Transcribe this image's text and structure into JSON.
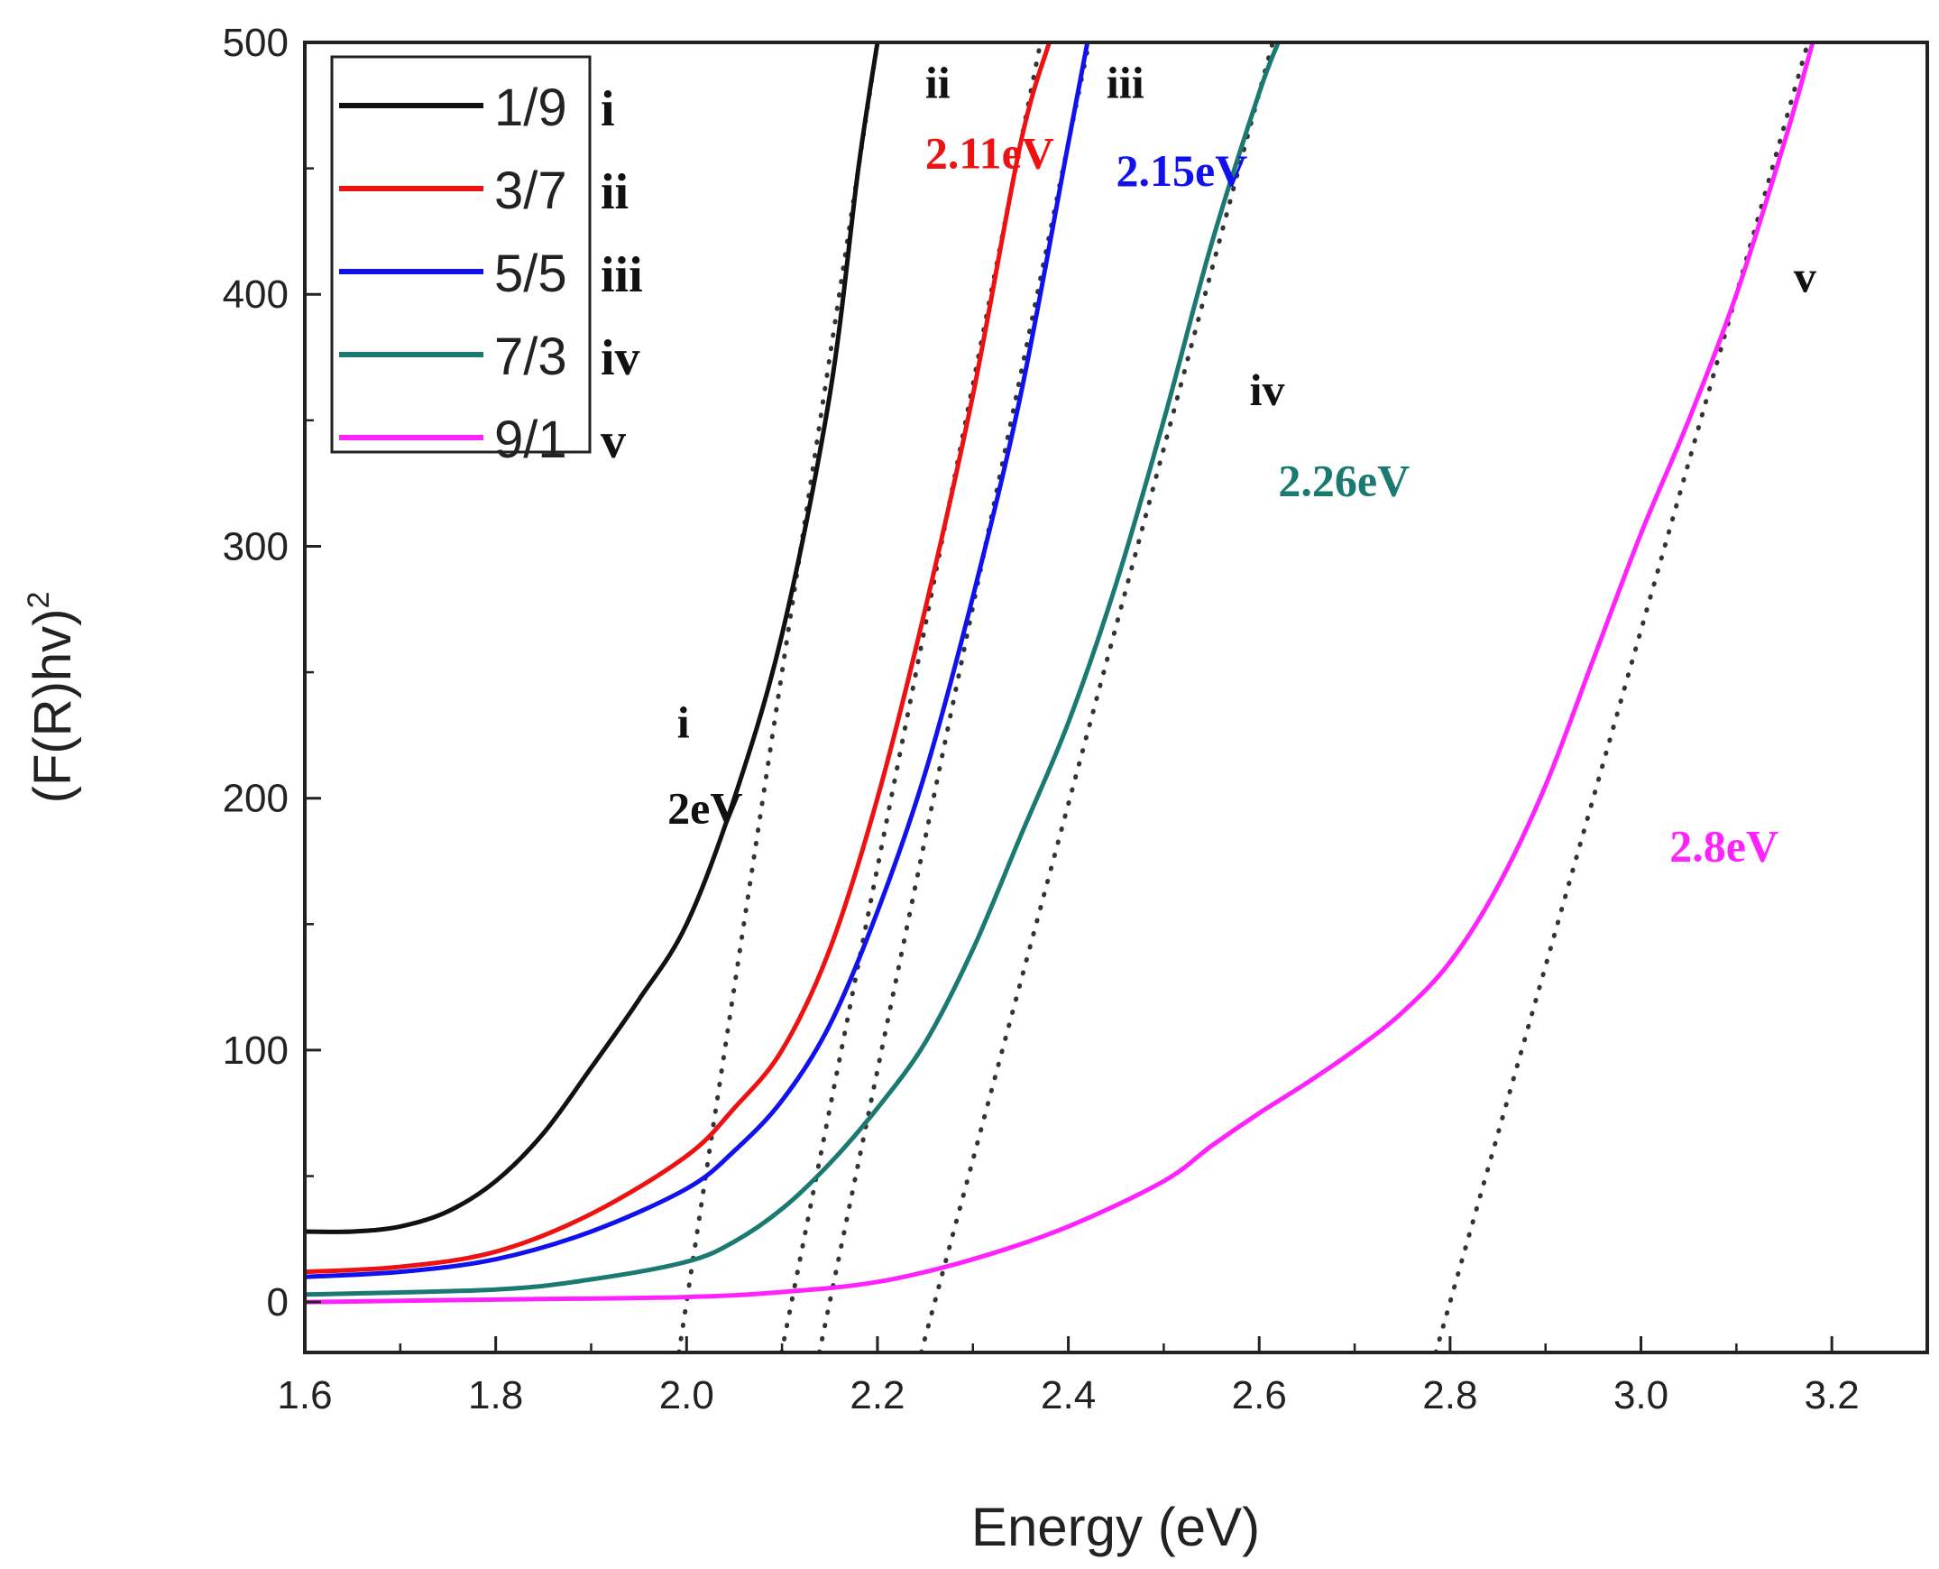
{
  "chart_data": {
    "type": "line",
    "title": "",
    "xlabel": "Energy (eV)",
    "ylabel_main": "(F(R)hv)",
    "ylabel_sup": "2",
    "xlim": [
      1.6,
      3.3
    ],
    "ylim": [
      -20,
      500
    ],
    "x_ticks": [
      1.6,
      1.8,
      2.0,
      2.2,
      2.4,
      2.6,
      2.8,
      3.0,
      3.2
    ],
    "x_tick_labels": [
      "1.6",
      "1.8",
      "2.0",
      "2.2",
      "2.4",
      "2.6",
      "2.8",
      "3.0",
      "3.2"
    ],
    "y_ticks": [
      0,
      100,
      200,
      300,
      400,
      500
    ],
    "y_tick_labels": [
      "0",
      "100",
      "200",
      "300",
      "400",
      "500"
    ],
    "legend_position": "top-left",
    "series": [
      {
        "name": "1/9",
        "tag": "i",
        "color": "#111111",
        "x": [
          1.6,
          1.65,
          1.7,
          1.75,
          1.8,
          1.85,
          1.9,
          1.95,
          2.0,
          2.05,
          2.1,
          2.15,
          2.18,
          2.2
        ],
        "y": [
          28,
          28,
          30,
          36,
          48,
          67,
          93,
          120,
          150,
          200,
          265,
          360,
          450,
          500
        ],
        "fit": {
          "x_intercept": 2.0,
          "through": [
            2.18,
            450
          ]
        }
      },
      {
        "name": "3/7",
        "tag": "ii",
        "color": "#ee1111",
        "x": [
          1.6,
          1.7,
          1.8,
          1.9,
          2.0,
          2.05,
          2.1,
          2.15,
          2.2,
          2.25,
          2.3,
          2.35,
          2.38
        ],
        "y": [
          12,
          14,
          20,
          35,
          58,
          77,
          100,
          140,
          200,
          275,
          360,
          460,
          500
        ],
        "fit": {
          "x_intercept": 2.11,
          "through": [
            2.35,
            460
          ]
        }
      },
      {
        "name": "5/5",
        "tag": "iii",
        "color": "#1111ee",
        "x": [
          1.6,
          1.7,
          1.8,
          1.9,
          2.0,
          2.05,
          2.1,
          2.15,
          2.2,
          2.25,
          2.3,
          2.35,
          2.4,
          2.42
        ],
        "y": [
          10,
          12,
          17,
          28,
          45,
          60,
          80,
          110,
          155,
          210,
          280,
          360,
          460,
          500
        ],
        "fit": {
          "x_intercept": 2.15,
          "through": [
            2.4,
            460
          ]
        }
      },
      {
        "name": "7/3",
        "tag": "iv",
        "color": "#1a7a72",
        "x": [
          1.6,
          1.8,
          1.9,
          2.0,
          2.05,
          2.1,
          2.15,
          2.2,
          2.25,
          2.3,
          2.35,
          2.4,
          2.45,
          2.5,
          2.55,
          2.6,
          2.62
        ],
        "y": [
          3,
          5,
          9,
          16,
          24,
          37,
          55,
          77,
          103,
          140,
          185,
          230,
          285,
          350,
          420,
          480,
          500
        ],
        "fit": {
          "x_intercept": 2.26,
          "through": [
            2.6,
            480
          ]
        }
      },
      {
        "name": "9/1",
        "tag": "v",
        "color": "#ff22ff",
        "x": [
          1.6,
          1.8,
          2.0,
          2.1,
          2.2,
          2.3,
          2.4,
          2.5,
          2.55,
          2.6,
          2.65,
          2.7,
          2.75,
          2.8,
          2.85,
          2.9,
          2.95,
          3.0,
          3.05,
          3.1,
          3.15,
          3.18
        ],
        "y": [
          0,
          1,
          2,
          4,
          8,
          17,
          30,
          48,
          62,
          75,
          87,
          100,
          115,
          135,
          165,
          205,
          255,
          305,
          350,
          400,
          460,
          500
        ],
        "fit": {
          "x_intercept": 2.8,
          "through": [
            3.1,
            400
          ]
        }
      }
    ],
    "annotations": [
      {
        "text": "i",
        "x": 1.99,
        "y": 224,
        "color": "#111111"
      },
      {
        "text": "2eV",
        "x": 1.98,
        "y": 190,
        "color": "#111111"
      },
      {
        "text": "ii",
        "x": 2.25,
        "y": 478,
        "color": "#111111"
      },
      {
        "text": "2.11eV",
        "x": 2.25,
        "y": 450,
        "color": "#ee1111"
      },
      {
        "text": "iii",
        "x": 2.44,
        "y": 478,
        "color": "#111111"
      },
      {
        "text": "2.15eV",
        "x": 2.45,
        "y": 443,
        "color": "#1111ee"
      },
      {
        "text": "iv",
        "x": 2.59,
        "y": 356,
        "color": "#111111"
      },
      {
        "text": "2.26eV",
        "x": 2.62,
        "y": 320,
        "color": "#1a7a72"
      },
      {
        "text": "v",
        "x": 3.16,
        "y": 401,
        "color": "#111111"
      },
      {
        "text": "2.8eV",
        "x": 3.03,
        "y": 175,
        "color": "#ff22ff"
      }
    ]
  }
}
